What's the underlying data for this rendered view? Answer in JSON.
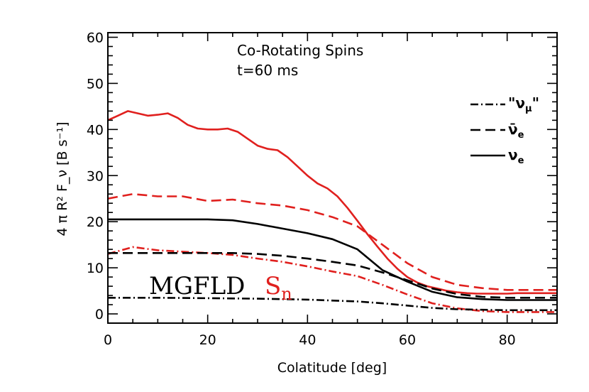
{
  "chart_data": {
    "type": "line",
    "annotation_lines": [
      "Co-Rotating Spins",
      "t=60 ms"
    ],
    "xlabel": "Colatitude [deg]",
    "ylabel": "4 π R² F_ν [B s⁻¹]",
    "xlim": [
      0,
      90
    ],
    "ylim": [
      -2,
      61
    ],
    "xticks": [
      0,
      20,
      40,
      60,
      80
    ],
    "yticks": [
      0,
      10,
      20,
      30,
      40,
      50,
      60
    ],
    "legend": {
      "placement": "right",
      "entries": [
        {
          "label": "\"ν_μ\"",
          "style": "dash-dot"
        },
        {
          "label": "ν̄_e",
          "style": "dashed"
        },
        {
          "label": "ν_e",
          "style": "solid"
        }
      ]
    },
    "method_labels": [
      {
        "text": "MGFLD",
        "color": "#000000"
      },
      {
        "text": "S_n",
        "color": "#e0201e"
      }
    ],
    "series": [
      {
        "method": "Sn",
        "species": "nu_e",
        "color": "#e0201e",
        "style": "solid",
        "x": [
          0,
          2,
          4,
          6,
          8,
          10,
          12,
          14,
          16,
          18,
          20,
          22,
          24,
          26,
          28,
          30,
          32,
          34,
          36,
          38,
          40,
          42,
          44,
          46,
          48,
          50,
          52,
          54,
          56,
          58,
          60,
          62,
          64,
          66,
          68,
          70,
          72,
          74,
          76,
          78,
          80,
          82,
          84,
          86,
          88,
          90
        ],
        "y": [
          42,
          43,
          44,
          43.5,
          43,
          43.2,
          43.5,
          42.5,
          41,
          40.2,
          40,
          40,
          40.2,
          39.5,
          38,
          36.5,
          35.8,
          35.5,
          34,
          32,
          30,
          28.3,
          27.2,
          25.5,
          23,
          20.2,
          17.3,
          14.6,
          12,
          9.8,
          8,
          6.8,
          6,
          5.5,
          5,
          4.7,
          4.5,
          4.4,
          4.4,
          4.4,
          4.4,
          4.5,
          4.5,
          4.5,
          4.5,
          4.5
        ]
      },
      {
        "method": "Sn",
        "species": "nu_e_bar",
        "color": "#e0201e",
        "style": "dashed",
        "x": [
          0,
          5,
          10,
          15,
          20,
          25,
          30,
          35,
          40,
          45,
          50,
          55,
          60,
          65,
          70,
          75,
          80,
          85,
          90
        ],
        "y": [
          25,
          26,
          25.5,
          25.5,
          24.5,
          24.8,
          24,
          23.5,
          22.5,
          21,
          19,
          15,
          11,
          8,
          6.3,
          5.6,
          5.2,
          5.2,
          5.2
        ]
      },
      {
        "method": "Sn",
        "species": "nu_mu",
        "color": "#e0201e",
        "style": "dash-dot",
        "x": [
          0,
          5,
          10,
          15,
          20,
          25,
          30,
          35,
          40,
          45,
          50,
          55,
          60,
          65,
          70,
          75,
          80,
          85,
          90
        ],
        "y": [
          13,
          14.5,
          13.8,
          13.5,
          13.2,
          12.8,
          12,
          11.3,
          10.3,
          9.2,
          8.2,
          6.3,
          4.2,
          2.3,
          1.2,
          0.6,
          0.4,
          0.4,
          0.4
        ]
      },
      {
        "method": "MGFLD",
        "species": "nu_e",
        "color": "#000000",
        "style": "solid",
        "x": [
          0,
          5,
          10,
          15,
          20,
          25,
          30,
          35,
          40,
          45,
          50,
          52,
          55,
          60,
          65,
          70,
          75,
          80,
          85,
          90
        ],
        "y": [
          20.5,
          20.5,
          20.5,
          20.5,
          20.5,
          20.3,
          19.5,
          18.5,
          17.5,
          16.2,
          14,
          12.2,
          9.5,
          7,
          4.8,
          3.6,
          3.2,
          3.0,
          3.0,
          3.0
        ]
      },
      {
        "method": "MGFLD",
        "species": "nu_e_bar",
        "color": "#000000",
        "style": "dashed",
        "x": [
          0,
          5,
          10,
          15,
          20,
          25,
          30,
          35,
          40,
          45,
          50,
          55,
          60,
          65,
          70,
          75,
          80,
          85,
          90
        ],
        "y": [
          13.2,
          13.2,
          13.2,
          13.2,
          13.2,
          13.2,
          13,
          12.6,
          12,
          11.3,
          10.5,
          9,
          7.3,
          5.5,
          4.3,
          3.7,
          3.5,
          3.5,
          3.5
        ]
      },
      {
        "method": "MGFLD",
        "species": "nu_mu",
        "color": "#000000",
        "style": "dash-dot",
        "x": [
          0,
          10,
          20,
          30,
          40,
          50,
          55,
          60,
          65,
          70,
          75,
          80,
          85,
          90
        ],
        "y": [
          3.5,
          3.5,
          3.4,
          3.3,
          3.1,
          2.7,
          2.3,
          1.8,
          1.3,
          1.0,
          0.9,
          0.8,
          0.8,
          0.8
        ]
      }
    ]
  }
}
